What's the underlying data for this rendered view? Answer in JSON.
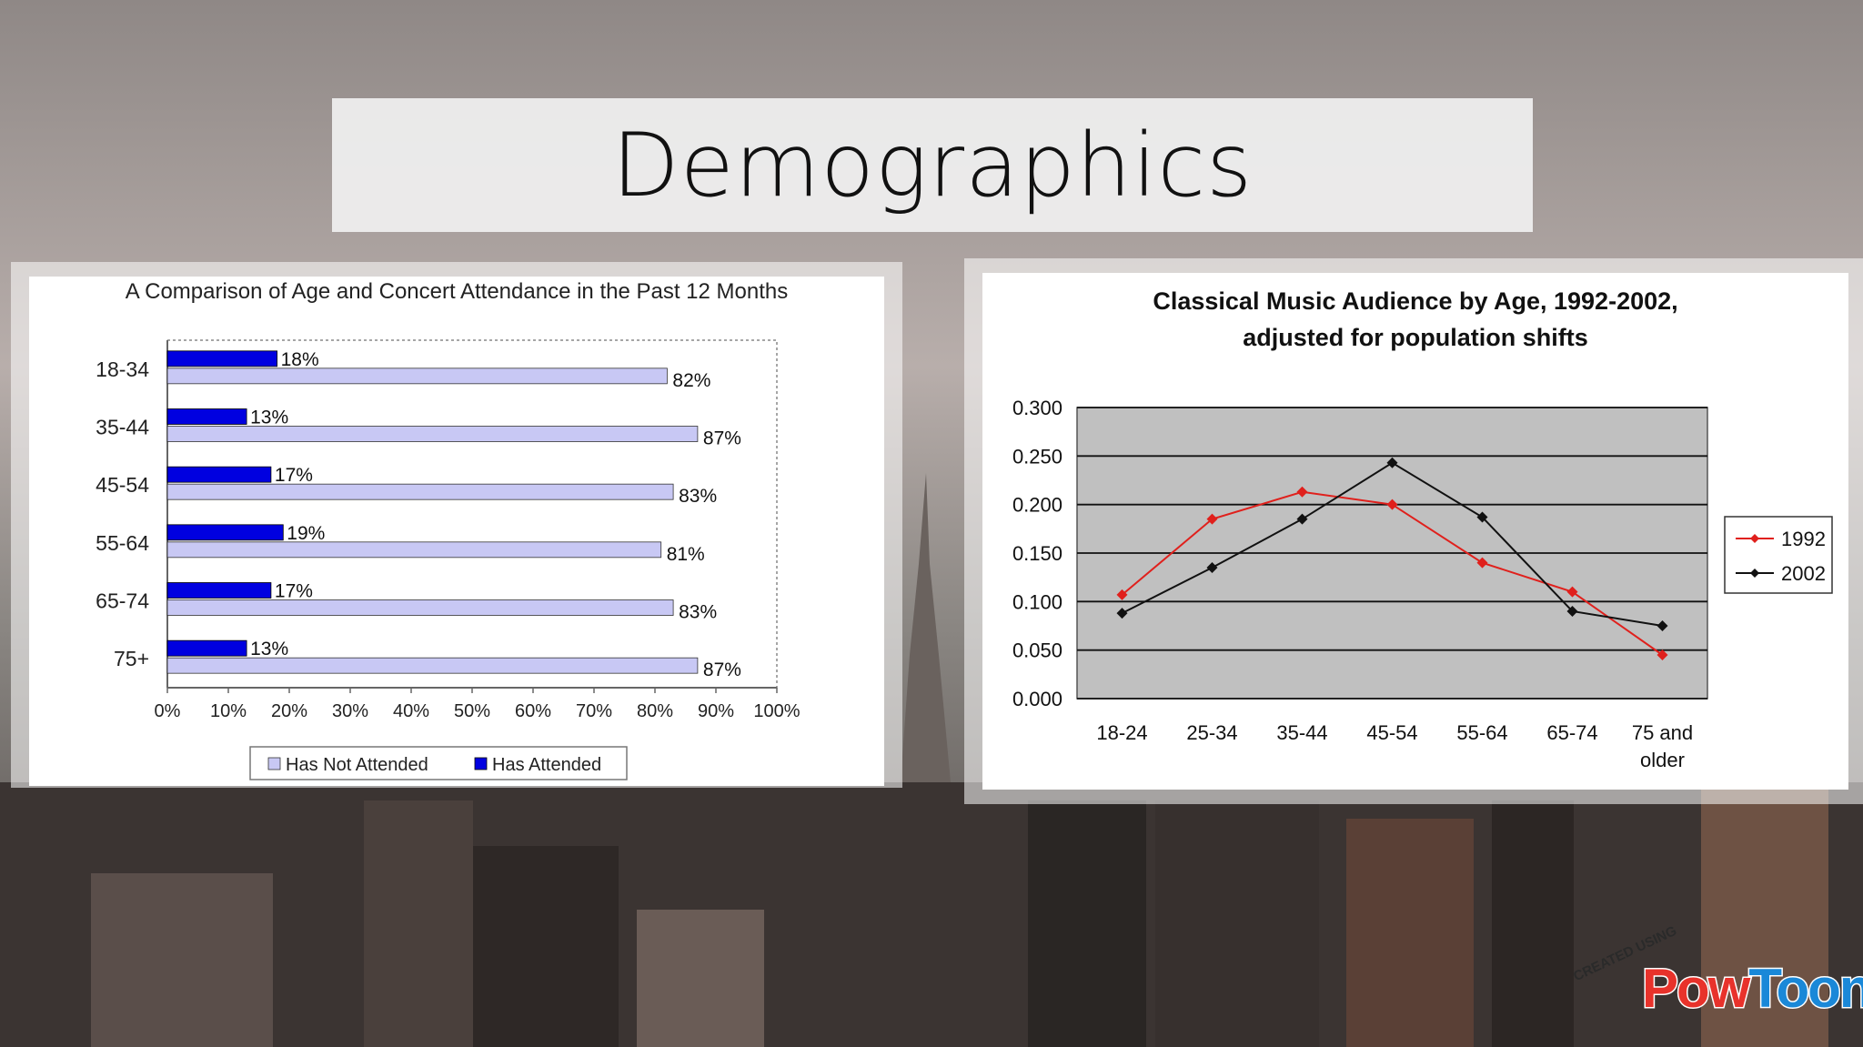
{
  "slide": {
    "title": "Demographics",
    "watermark_small": "CREATED USING",
    "watermark_brand_part1": "Pow",
    "watermark_brand_part2": "Toon"
  },
  "colors": {
    "attended": "#0000e0",
    "not_attended": "#c8c8f4",
    "line_1992": "#e0201c",
    "line_2002": "#111111",
    "plot_area": "#c0c0c0"
  },
  "chart_data": [
    {
      "type": "bar",
      "orientation": "horizontal",
      "title": "A Comparison of Age and Concert Attendance in the Past 12 Months",
      "categories": [
        "18-34",
        "35-44",
        "45-54",
        "55-64",
        "65-74",
        "75+"
      ],
      "series": [
        {
          "name": "Has Attended",
          "values": [
            18,
            13,
            17,
            19,
            17,
            13
          ],
          "labels": [
            "18%",
            "13%",
            "17%",
            "19%",
            "17%",
            "13%"
          ]
        },
        {
          "name": "Has Not Attended",
          "values": [
            82,
            87,
            83,
            81,
            83,
            87
          ],
          "labels": [
            "82%",
            "87%",
            "83%",
            "81%",
            "83%",
            "87%"
          ]
        }
      ],
      "xlim": [
        0,
        100
      ],
      "xticks": [
        "0%",
        "10%",
        "20%",
        "30%",
        "40%",
        "50%",
        "60%",
        "70%",
        "80%",
        "90%",
        "100%"
      ],
      "legend": [
        "Has Not Attended",
        "Has Attended"
      ],
      "legend_position": "bottom"
    },
    {
      "type": "line",
      "title_line1": "Classical Music Audience by Age, 1992-2002,",
      "title_line2": "adjusted for population shifts",
      "categories": [
        "18-24",
        "25-34",
        "35-44",
        "45-54",
        "55-64",
        "65-74",
        "75 and older"
      ],
      "series": [
        {
          "name": "1992",
          "values": [
            0.107,
            0.185,
            0.213,
            0.2,
            0.14,
            0.11,
            0.045
          ]
        },
        {
          "name": "2002",
          "values": [
            0.088,
            0.135,
            0.185,
            0.243,
            0.187,
            0.09,
            0.075
          ]
        }
      ],
      "ylim": [
        0,
        0.3
      ],
      "yticks": [
        "0.300",
        "0.250",
        "0.200",
        "0.150",
        "0.100",
        "0.050",
        "0.000"
      ],
      "grid": true,
      "legend_position": "right"
    }
  ]
}
